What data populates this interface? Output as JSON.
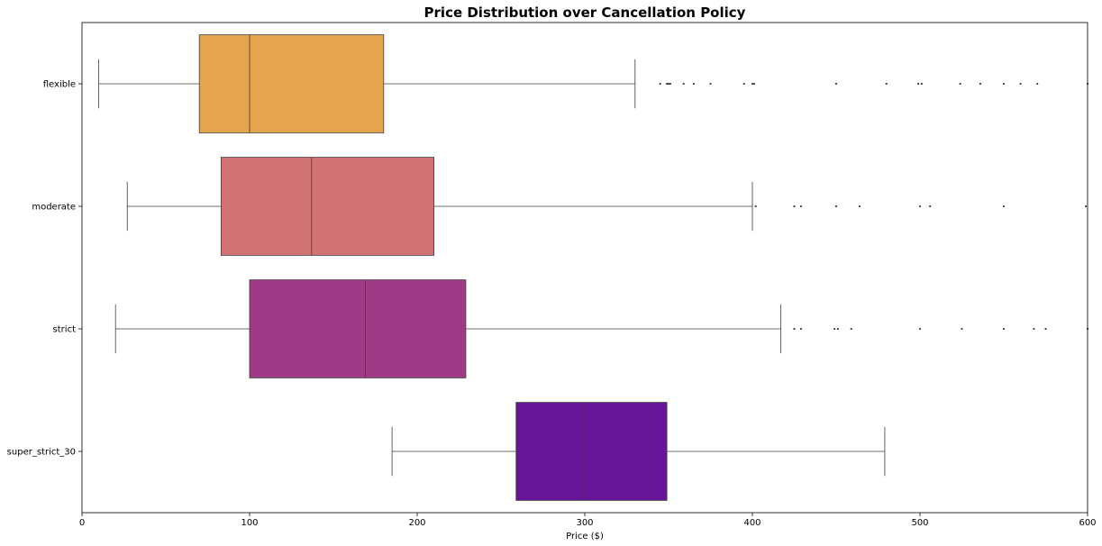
{
  "chart_data": {
    "type": "boxplot",
    "orientation": "horizontal",
    "title": "Price Distribution over Cancellation Policy",
    "xlabel": "Price ($)",
    "ylabel": "",
    "xlim": [
      0,
      600
    ],
    "xticks": [
      "0",
      "100",
      "200",
      "300",
      "400",
      "500",
      "600"
    ],
    "grid": false,
    "categories": [
      "flexible",
      "moderate",
      "strict",
      "super_strict_30"
    ],
    "series": [
      {
        "category": "flexible",
        "color": "#e5a44e",
        "whisker_low": 10,
        "q1": 70,
        "median": 100,
        "q3": 180,
        "whisker_high": 330,
        "outliers": [
          345,
          349,
          350,
          351,
          359,
          365,
          375,
          395,
          400,
          401,
          450,
          480,
          499,
          501,
          524,
          536,
          550,
          560,
          570,
          600
        ]
      },
      {
        "category": "moderate",
        "color": "#d27373",
        "whisker_low": 27,
        "q1": 83,
        "median": 137,
        "q3": 210,
        "whisker_high": 400,
        "outliers": [
          402,
          425,
          429,
          450,
          464,
          500,
          506,
          550,
          599
        ]
      },
      {
        "category": "strict",
        "color": "#9f3b86",
        "whisker_low": 20,
        "q1": 100,
        "median": 169,
        "q3": 229,
        "whisker_high": 417,
        "outliers": [
          425,
          429,
          449,
          451,
          459,
          500,
          525,
          550,
          568,
          575,
          600
        ]
      },
      {
        "category": "super_strict_30",
        "color": "#661598",
        "whisker_low": 185,
        "q1": 259,
        "median": 299,
        "q3": 349,
        "whisker_high": 479,
        "outliers": []
      }
    ]
  }
}
